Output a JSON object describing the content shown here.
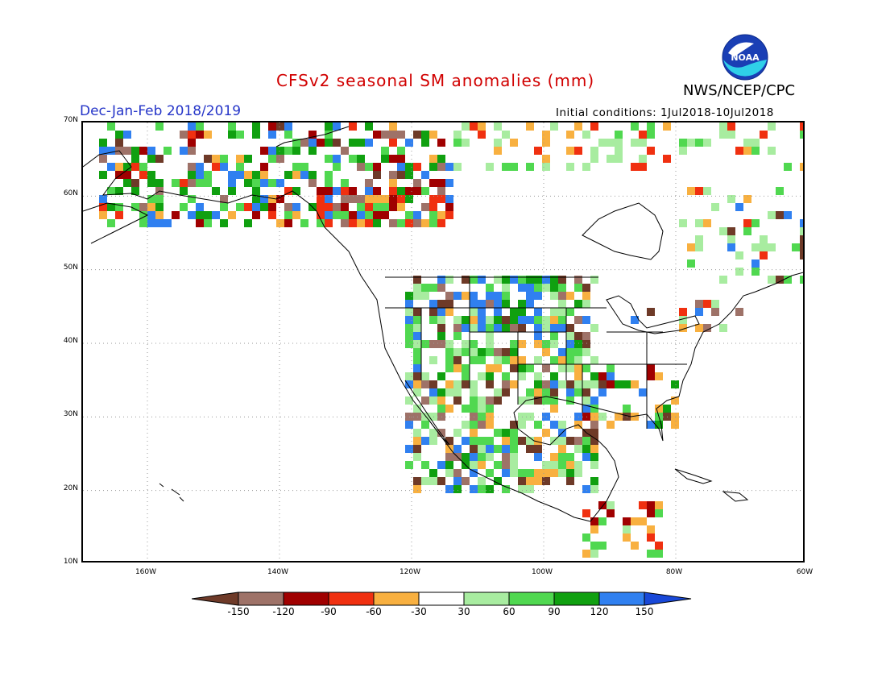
{
  "header": {
    "title": "CFSv2 seasonal SM anomalies (mm)",
    "agency": "NWS/NCEP/CPC",
    "period": "Dec-Jan-Feb 2018/2019",
    "initial_conditions": "Initial conditions: 1Jul2018-10Jul2018",
    "logo_text": "NOAA"
  },
  "map": {
    "lat_labels": [
      "70N",
      "60N",
      "50N",
      "40N",
      "30N",
      "20N",
      "10N"
    ],
    "lon_labels": [
      "160W",
      "140W",
      "120W",
      "100W",
      "80W",
      "60W"
    ]
  },
  "legend": {
    "labels": [
      "-150",
      "-120",
      "-90",
      "-60",
      "-30",
      "30",
      "60",
      "90",
      "120",
      "150"
    ],
    "colors": [
      "#6e3a28",
      "#9e7268",
      "#a00000",
      "#f03010",
      "#f8b040",
      "#ffffff",
      "#a8eca0",
      "#50d850",
      "#10a010",
      "#3080f0",
      "#1848d8"
    ]
  }
}
